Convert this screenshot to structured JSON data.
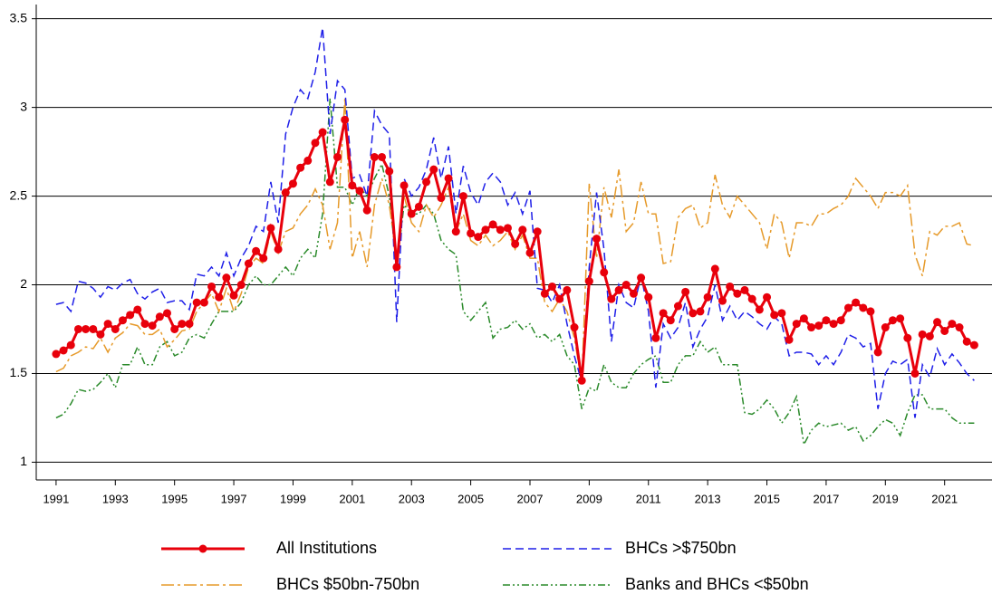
{
  "chart_data": {
    "type": "line",
    "x": [
      1991,
      1991.25,
      1991.5,
      1991.75,
      1992,
      1992.25,
      1992.5,
      1992.75,
      1993,
      1993.25,
      1993.5,
      1993.75,
      1994,
      1994.25,
      1994.5,
      1994.75,
      1995,
      1995.25,
      1995.5,
      1995.75,
      1996,
      1996.25,
      1996.5,
      1996.75,
      1997,
      1997.25,
      1997.5,
      1997.75,
      1998,
      1998.25,
      1998.5,
      1998.75,
      1999,
      1999.25,
      1999.5,
      1999.75,
      2000,
      2000.25,
      2000.5,
      2000.75,
      2001,
      2001.25,
      2001.5,
      2001.75,
      2002,
      2002.25,
      2002.5,
      2002.75,
      2003,
      2003.25,
      2003.5,
      2003.75,
      2004,
      2004.25,
      2004.5,
      2004.75,
      2005,
      2005.25,
      2005.5,
      2005.75,
      2006,
      2006.25,
      2006.5,
      2006.75,
      2007,
      2007.25,
      2007.5,
      2007.75,
      2008,
      2008.25,
      2008.5,
      2008.75,
      2009,
      2009.25,
      2009.5,
      2009.75,
      2010,
      2010.25,
      2010.5,
      2010.75,
      2011,
      2011.25,
      2011.5,
      2011.75,
      2012,
      2012.25,
      2012.5,
      2012.75,
      2013,
      2013.25,
      2013.5,
      2013.75,
      2014,
      2014.25,
      2014.5,
      2014.75,
      2015,
      2015.25,
      2015.5,
      2015.75,
      2016,
      2016.25,
      2016.5,
      2016.75,
      2017,
      2017.25,
      2017.5,
      2017.75,
      2018,
      2018.25,
      2018.5,
      2018.75,
      2019,
      2019.25,
      2019.5,
      2019.75,
      2020,
      2020.25,
      2020.5,
      2020.75,
      2021,
      2021.25,
      2021.5,
      2021.75,
      2022
    ],
    "series": [
      {
        "name": "All Institutions",
        "color": "#e8000b",
        "dash": "none",
        "width": 3,
        "marker": true,
        "values": [
          1.61,
          1.63,
          1.66,
          1.75,
          1.75,
          1.75,
          1.72,
          1.78,
          1.75,
          1.8,
          1.83,
          1.86,
          1.78,
          1.77,
          1.82,
          1.84,
          1.75,
          1.78,
          1.78,
          1.9,
          1.9,
          1.99,
          1.93,
          2.04,
          1.94,
          2.0,
          2.12,
          2.19,
          2.15,
          2.32,
          2.2,
          2.52,
          2.57,
          2.66,
          2.7,
          2.8,
          2.86,
          2.58,
          2.72,
          2.93,
          2.56,
          2.53,
          2.42,
          2.72,
          2.72,
          2.64,
          2.1,
          2.56,
          2.4,
          2.44,
          2.58,
          2.65,
          2.49,
          2.6,
          2.3,
          2.5,
          2.29,
          2.27,
          2.31,
          2.34,
          2.31,
          2.32,
          2.23,
          2.31,
          2.18,
          2.3,
          1.95,
          1.99,
          1.92,
          1.97,
          1.76,
          1.46,
          2.02,
          2.26,
          2.07,
          1.92,
          1.97,
          2.0,
          1.95,
          2.04,
          1.93,
          1.7,
          1.84,
          1.8,
          1.88,
          1.96,
          1.84,
          1.85,
          1.93,
          2.09,
          1.91,
          1.99,
          1.95,
          1.97,
          1.92,
          1.86,
          1.93,
          1.83,
          1.84,
          1.69,
          1.78,
          1.81,
          1.76,
          1.77,
          1.8,
          1.78,
          1.8,
          1.87,
          1.9,
          1.87,
          1.85,
          1.62,
          1.76,
          1.8,
          1.81,
          1.7,
          1.5,
          1.72,
          1.71,
          1.79,
          1.74,
          1.78,
          1.76,
          1.68,
          1.66
        ]
      },
      {
        "name": "BHCs >$750bn",
        "color": "#1f1fe8",
        "dash": "9,5",
        "width": 1.5,
        "marker": false,
        "values": [
          1.89,
          1.9,
          1.85,
          2.02,
          2.01,
          1.98,
          1.93,
          1.99,
          1.97,
          2.01,
          2.03,
          1.95,
          1.92,
          1.96,
          1.98,
          1.9,
          1.91,
          1.91,
          1.86,
          2.06,
          2.05,
          2.1,
          2.05,
          2.18,
          2.05,
          2.15,
          2.22,
          2.33,
          2.3,
          2.58,
          2.35,
          2.85,
          3.0,
          3.1,
          3.05,
          3.2,
          3.45,
          2.85,
          3.15,
          3.1,
          2.6,
          2.62,
          2.5,
          2.98,
          2.9,
          2.85,
          1.79,
          2.6,
          2.5,
          2.55,
          2.65,
          2.83,
          2.6,
          2.78,
          2.4,
          2.67,
          2.52,
          2.45,
          2.58,
          2.63,
          2.58,
          2.45,
          2.52,
          2.4,
          2.53,
          1.98,
          1.97,
          1.9,
          2.0,
          1.78,
          1.6,
          1.45,
          2.1,
          2.52,
          2.2,
          1.68,
          2.0,
          1.9,
          1.87,
          2.05,
          1.85,
          1.42,
          1.78,
          1.7,
          1.76,
          1.9,
          1.65,
          1.75,
          1.82,
          2.0,
          1.8,
          1.88,
          1.8,
          1.85,
          1.82,
          1.78,
          1.75,
          1.82,
          1.78,
          1.6,
          1.62,
          1.62,
          1.61,
          1.55,
          1.6,
          1.55,
          1.62,
          1.72,
          1.7,
          1.65,
          1.67,
          1.3,
          1.5,
          1.57,
          1.55,
          1.58,
          1.25,
          1.55,
          1.48,
          1.64,
          1.55,
          1.61,
          1.56,
          1.5,
          1.46
        ]
      },
      {
        "name": "BHCs $50bn-750bn",
        "color": "#e69a2a",
        "dash": "14,4,3,4",
        "width": 1.5,
        "marker": false,
        "values": [
          1.51,
          1.53,
          1.6,
          1.62,
          1.65,
          1.64,
          1.7,
          1.62,
          1.7,
          1.73,
          1.78,
          1.77,
          1.72,
          1.72,
          1.75,
          1.65,
          1.69,
          1.74,
          1.75,
          1.85,
          1.9,
          1.95,
          1.85,
          1.98,
          1.85,
          1.95,
          2.1,
          2.15,
          2.12,
          2.3,
          2.18,
          2.3,
          2.32,
          2.4,
          2.45,
          2.54,
          2.45,
          2.2,
          2.35,
          3.05,
          2.15,
          2.3,
          2.1,
          2.45,
          2.6,
          2.45,
          2.15,
          2.5,
          2.35,
          2.3,
          2.45,
          2.38,
          2.45,
          2.55,
          2.3,
          2.4,
          2.25,
          2.22,
          2.28,
          2.22,
          2.25,
          2.3,
          2.2,
          2.28,
          2.15,
          2.15,
          1.9,
          1.85,
          1.92,
          1.85,
          1.7,
          1.45,
          2.57,
          2.15,
          2.55,
          2.38,
          2.65,
          2.3,
          2.35,
          2.58,
          2.4,
          2.4,
          2.12,
          2.13,
          2.38,
          2.43,
          2.45,
          2.32,
          2.35,
          2.62,
          2.45,
          2.38,
          2.5,
          2.45,
          2.4,
          2.35,
          2.2,
          2.4,
          2.35,
          2.15,
          2.35,
          2.35,
          2.33,
          2.4,
          2.4,
          2.43,
          2.45,
          2.5,
          2.6,
          2.55,
          2.5,
          2.43,
          2.52,
          2.52,
          2.5,
          2.56,
          2.17,
          2.05,
          2.3,
          2.28,
          2.33,
          2.33,
          2.35,
          2.23,
          2.22
        ]
      },
      {
        "name": "Banks and BHCs <$50bn",
        "color": "#2a8a2a",
        "dash": "8,3,2,3,2,3",
        "width": 1.5,
        "marker": false,
        "values": [
          1.25,
          1.27,
          1.33,
          1.41,
          1.4,
          1.41,
          1.45,
          1.5,
          1.42,
          1.55,
          1.55,
          1.65,
          1.55,
          1.55,
          1.65,
          1.68,
          1.6,
          1.62,
          1.7,
          1.72,
          1.7,
          1.78,
          1.85,
          1.85,
          1.85,
          1.9,
          2.0,
          2.05,
          2.0,
          2.0,
          2.05,
          2.1,
          2.05,
          2.15,
          2.2,
          2.15,
          2.4,
          3.05,
          2.55,
          2.55,
          2.45,
          2.55,
          2.5,
          2.6,
          2.68,
          2.5,
          2.1,
          2.45,
          2.4,
          2.4,
          2.45,
          2.4,
          2.25,
          2.2,
          2.17,
          1.85,
          1.8,
          1.85,
          1.9,
          1.7,
          1.75,
          1.76,
          1.8,
          1.75,
          1.78,
          1.7,
          1.72,
          1.68,
          1.72,
          1.6,
          1.55,
          1.3,
          1.42,
          1.4,
          1.55,
          1.45,
          1.42,
          1.42,
          1.5,
          1.55,
          1.58,
          1.6,
          1.45,
          1.45,
          1.55,
          1.6,
          1.6,
          1.68,
          1.62,
          1.65,
          1.55,
          1.55,
          1.55,
          1.28,
          1.27,
          1.3,
          1.35,
          1.3,
          1.22,
          1.28,
          1.37,
          1.1,
          1.18,
          1.22,
          1.2,
          1.21,
          1.22,
          1.18,
          1.2,
          1.12,
          1.15,
          1.2,
          1.24,
          1.22,
          1.15,
          1.28,
          1.38,
          1.38,
          1.3,
          1.3,
          1.3,
          1.25,
          1.22,
          1.22,
          1.22
        ]
      }
    ],
    "xlim": [
      1990.33,
      2022.6
    ],
    "xticks": [
      1991,
      1993,
      1995,
      1997,
      1999,
      2001,
      2003,
      2005,
      2007,
      2009,
      2011,
      2013,
      2015,
      2017,
      2019,
      2021
    ],
    "ylim": [
      0.9,
      3.58
    ],
    "yticks": [
      1,
      1.5,
      2,
      2.5,
      3,
      3.5
    ],
    "grid": true
  }
}
